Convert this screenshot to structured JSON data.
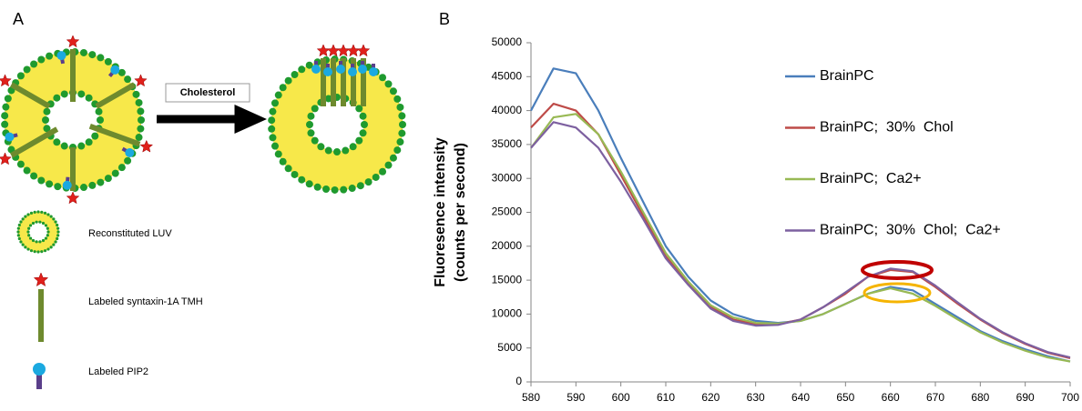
{
  "panel_a": {
    "label": "A",
    "arrow_label": "Cholesterol",
    "legend": [
      "Reconstituted LUV",
      "Labeled syntaxin-1A TMH",
      "Labeled PIP2"
    ]
  },
  "chart_data": {
    "type": "line",
    "panel_label": "B",
    "ylabel": [
      "Fluoresence  intensity",
      "(counts per second)"
    ],
    "x": [
      580,
      585,
      590,
      595,
      600,
      605,
      610,
      615,
      620,
      625,
      630,
      635,
      640,
      645,
      650,
      655,
      660,
      665,
      670,
      675,
      680,
      685,
      690,
      695,
      700
    ],
    "series": [
      {
        "name": "BrainPC",
        "color": "#4a7ebb",
        "values": [
          40000,
          46200,
          45500,
          40000,
          33000,
          26500,
          20000,
          15500,
          12000,
          10000,
          9000,
          8700,
          9000,
          10000,
          11500,
          13000,
          14000,
          13500,
          11500,
          9500,
          7500,
          6000,
          4800,
          3800,
          3000
        ]
      },
      {
        "name": "BrainPC;  30%  Chol",
        "color": "#be4b48",
        "values": [
          37500,
          41000,
          40000,
          36500,
          30500,
          24500,
          18500,
          14500,
          11000,
          9200,
          8500,
          8500,
          9200,
          11000,
          13000,
          15500,
          16500,
          16200,
          14000,
          11500,
          9200,
          7200,
          5600,
          4300,
          3500
        ]
      },
      {
        "name": "BrainPC;  Ca2+",
        "color": "#98b954",
        "values": [
          34500,
          39000,
          39500,
          36500,
          31000,
          25000,
          19000,
          14800,
          11300,
          9500,
          8700,
          8600,
          9000,
          10000,
          11500,
          13000,
          13800,
          13000,
          11200,
          9200,
          7300,
          5800,
          4600,
          3600,
          3000
        ]
      },
      {
        "name": "BrainPC;  30%  Chol;  Ca2+",
        "color": "#7d60a0",
        "values": [
          34500,
          38300,
          37500,
          34500,
          29500,
          24000,
          18200,
          14300,
          10800,
          9000,
          8300,
          8400,
          9200,
          11000,
          13200,
          15500,
          16700,
          16300,
          14200,
          11700,
          9300,
          7300,
          5700,
          4400,
          3600
        ]
      }
    ],
    "xlim": [
      580,
      700
    ],
    "xticks": [
      580,
      590,
      600,
      610,
      620,
      630,
      640,
      650,
      660,
      670,
      680,
      690,
      700
    ],
    "ylim": [
      0,
      50000
    ],
    "yticks": [
      0,
      5000,
      10000,
      15000,
      20000,
      25000,
      30000,
      35000,
      40000,
      45000,
      50000
    ]
  }
}
